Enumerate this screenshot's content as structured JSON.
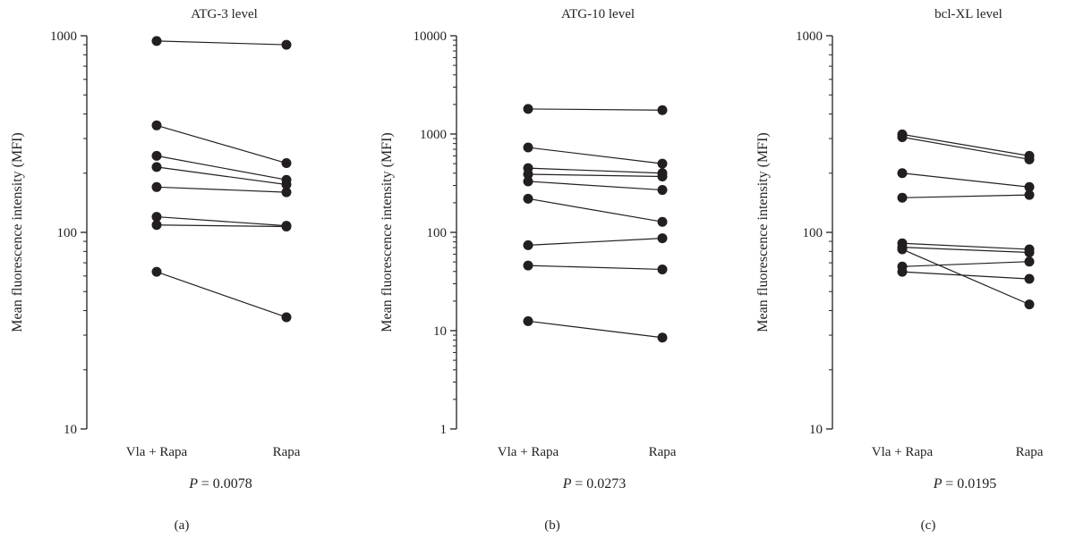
{
  "colors": {
    "ink": "#231f20",
    "background": "#ffffff"
  },
  "chart_data": [
    {
      "type": "line",
      "tag": "(a)",
      "title": "ATG-3 level",
      "xlabel": "",
      "ylabel": "Mean fluorescence intensity (MFI)",
      "yscale": "log",
      "ylim": [
        10,
        1000
      ],
      "yticks": [
        "10",
        "100",
        "1000"
      ],
      "categories": [
        "Vla + Rapa",
        "Rapa"
      ],
      "pvalue_label": "P",
      "pvalue_text": "= 0.0078",
      "series": [
        {
          "values": [
            940,
            900
          ]
        },
        {
          "values": [
            350,
            225
          ]
        },
        {
          "values": [
            245,
            185
          ]
        },
        {
          "values": [
            215,
            175
          ]
        },
        {
          "values": [
            170,
            160
          ]
        },
        {
          "values": [
            120,
            108
          ]
        },
        {
          "values": [
            109,
            107
          ]
        },
        {
          "values": [
            63,
            37
          ]
        }
      ]
    },
    {
      "type": "line",
      "tag": "(b)",
      "title": "ATG-10 level",
      "xlabel": "",
      "ylabel": "Mean fluorescence intensity (MFI)",
      "yscale": "log",
      "ylim": [
        1,
        10000
      ],
      "yticks": [
        "1",
        "10",
        "100",
        "1000",
        "10000"
      ],
      "categories": [
        "Vla + Rapa",
        "Rapa"
      ],
      "pvalue_label": "P",
      "pvalue_text": "= 0.0273",
      "series": [
        {
          "values": [
            1800,
            1750
          ]
        },
        {
          "values": [
            730,
            500
          ]
        },
        {
          "values": [
            450,
            400
          ]
        },
        {
          "values": [
            390,
            370
          ]
        },
        {
          "values": [
            330,
            270
          ]
        },
        {
          "values": [
            220,
            128
          ]
        },
        {
          "values": [
            74,
            87
          ]
        },
        {
          "values": [
            46,
            42
          ]
        },
        {
          "values": [
            12.5,
            8.5
          ]
        }
      ]
    },
    {
      "type": "line",
      "tag": "(c)",
      "title": "bcl-XL level",
      "xlabel": "",
      "ylabel": "Mean fluorescence intensity (MFI)",
      "yscale": "log",
      "ylim": [
        10,
        1000
      ],
      "yticks": [
        "10",
        "100",
        "1000"
      ],
      "categories": [
        "Vla + Rapa",
        "Rapa"
      ],
      "pvalue_label": "P",
      "pvalue_text": "= 0.0195",
      "series": [
        {
          "values": [
            315,
            245
          ]
        },
        {
          "values": [
            305,
            235
          ]
        },
        {
          "values": [
            200,
            170
          ]
        },
        {
          "values": [
            150,
            155
          ]
        },
        {
          "values": [
            88,
            82
          ]
        },
        {
          "values": [
            84,
            79
          ]
        },
        {
          "values": [
            67,
            71
          ]
        },
        {
          "values": [
            63,
            58
          ]
        },
        {
          "values": [
            82,
            43
          ]
        }
      ]
    }
  ]
}
